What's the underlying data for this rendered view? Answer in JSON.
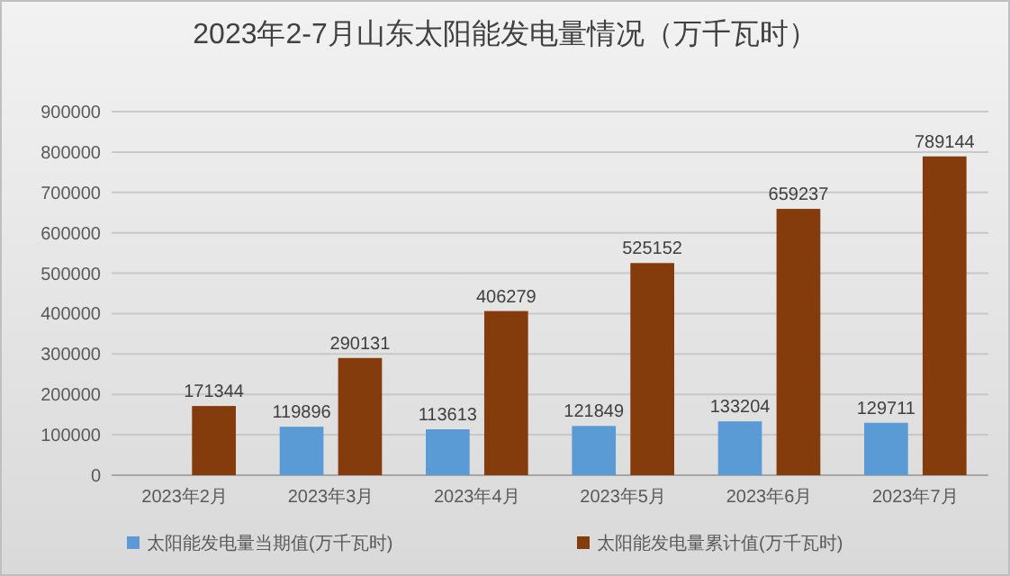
{
  "chart_data": {
    "type": "bar",
    "title": "2023年2-7月山东太阳能发电量情况（万千瓦时）",
    "categories": [
      "2023年2月",
      "2023年3月",
      "2023年4月",
      "2023年5月",
      "2023年6月",
      "2023年7月"
    ],
    "series": [
      {
        "name": "太阳能发电量当期值(万千瓦时)",
        "color": "#5b9bd5",
        "values": [
          null,
          119896,
          113613,
          121849,
          133204,
          129711
        ]
      },
      {
        "name": "太阳能发电量累计值(万千瓦时)",
        "color": "#843c0c",
        "values": [
          171344,
          290131,
          406279,
          525152,
          659237,
          789144
        ]
      }
    ],
    "ylim": [
      0,
      900000
    ],
    "yticks": [
      0,
      100000,
      200000,
      300000,
      400000,
      500000,
      600000,
      700000,
      800000,
      900000
    ],
    "grid": "y",
    "legend": "bottom",
    "data_labels": true
  }
}
